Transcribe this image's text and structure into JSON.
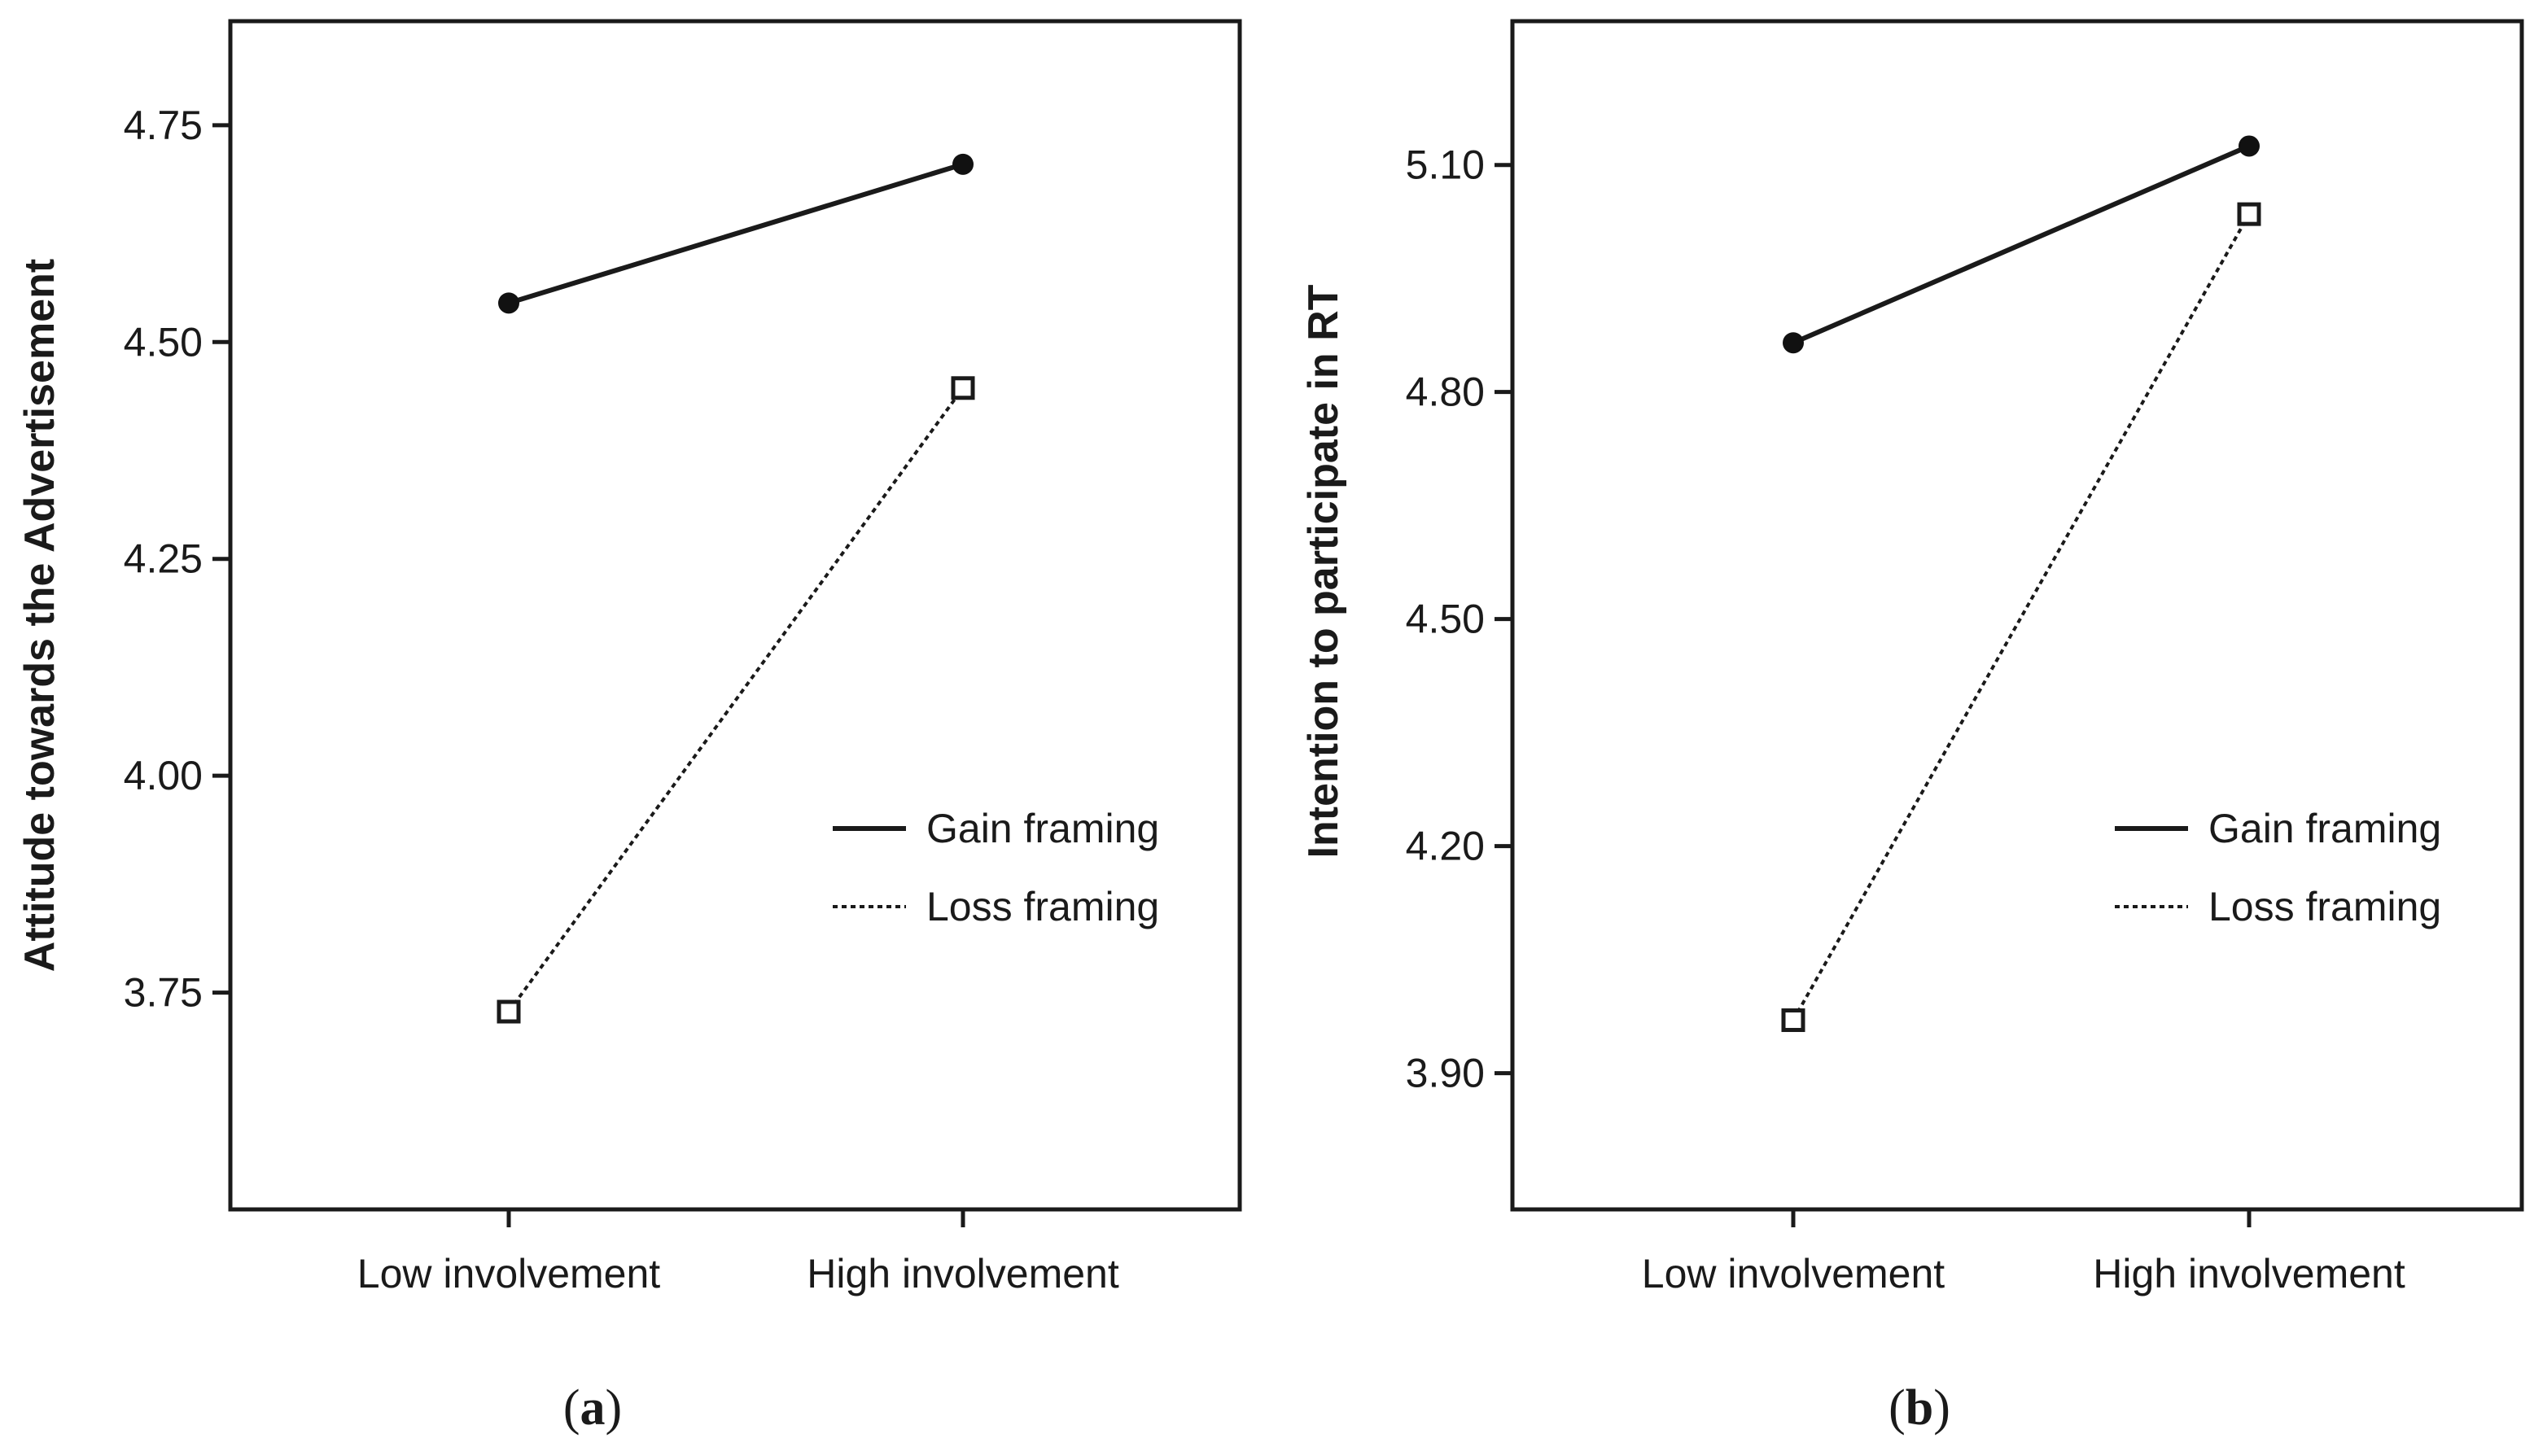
{
  "chart_data": [
    {
      "type": "line",
      "caption_letter": "a",
      "ylabel": "Attitude towards the Advertisement",
      "xlabel": "",
      "categories": [
        "Low involvement",
        "High involvement"
      ],
      "ylim": [
        3.5,
        4.87
      ],
      "yticks": [
        3.75,
        4.0,
        4.25,
        4.5,
        4.75
      ],
      "ytick_labels": [
        "3.75",
        "4.00",
        "4.25",
        "4.50",
        "4.75"
      ],
      "legend_position": "center-right",
      "series": [
        {
          "name": "Gain framing",
          "style": "solid",
          "marker": "filled-circle",
          "values": [
            4.545,
            4.705
          ]
        },
        {
          "name": "Loss framing",
          "style": "dotted",
          "marker": "open-square",
          "values": [
            3.728,
            4.447
          ]
        }
      ]
    },
    {
      "type": "line",
      "caption_letter": "b",
      "ylabel": "Intention to participate in RT",
      "xlabel": "",
      "categories": [
        "Low involvement",
        "High involvement"
      ],
      "ylim": [
        3.72,
        5.29
      ],
      "yticks": [
        3.9,
        4.2,
        4.5,
        4.8,
        5.1
      ],
      "ytick_labels": [
        "3.90",
        "4.20",
        "4.50",
        "4.80",
        "5.10"
      ],
      "legend_position": "center-right",
      "series": [
        {
          "name": "Gain framing",
          "style": "solid",
          "marker": "filled-circle",
          "values": [
            4.865,
            5.125
          ]
        },
        {
          "name": "Loss framing",
          "style": "dotted",
          "marker": "open-square",
          "values": [
            3.97,
            5.035
          ]
        }
      ]
    }
  ]
}
